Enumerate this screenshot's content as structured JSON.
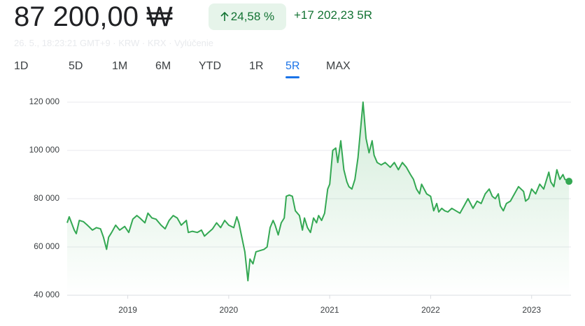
{
  "header": {
    "price": "87 200,00 ₩",
    "change_percent": "24,58 %",
    "change_abs": "+17 202,23",
    "period": "5R",
    "meta": "26. 5., 18:23:21 GMT+9 · KRW · KRX · Vylúčenie"
  },
  "tabs": [
    {
      "label": "1D"
    },
    {
      "label": "5D"
    },
    {
      "label": "1M"
    },
    {
      "label": "6M"
    },
    {
      "label": "YTD"
    },
    {
      "label": "1R"
    },
    {
      "label": "5R",
      "selected": true
    },
    {
      "label": "MAX"
    }
  ],
  "chart_data": {
    "type": "line",
    "color": "#34a853",
    "grid": true,
    "xlim": [
      2018.4,
      2023.39
    ],
    "xticks": [
      2019,
      2020,
      2021,
      2022,
      2023
    ],
    "ylim": [
      40000,
      120000
    ],
    "yticks": [
      {
        "value": 40000,
        "label": "40 000"
      },
      {
        "value": 60000,
        "label": "60 000"
      },
      {
        "value": 80000,
        "label": "80 000"
      },
      {
        "value": 100000,
        "label": "100 000"
      },
      {
        "value": 120000,
        "label": "120 000"
      }
    ],
    "x": [
      2018.4,
      2018.42,
      2018.47,
      2018.49,
      2018.52,
      2018.56,
      2018.6,
      2018.65,
      2018.69,
      2018.73,
      2018.76,
      2018.79,
      2018.81,
      2018.84,
      2018.88,
      2018.92,
      2018.97,
      2019.01,
      2019.05,
      2019.09,
      2019.12,
      2019.17,
      2019.2,
      2019.24,
      2019.28,
      2019.33,
      2019.37,
      2019.41,
      2019.45,
      2019.49,
      2019.53,
      2019.58,
      2019.6,
      2019.64,
      2019.69,
      2019.73,
      2019.76,
      2019.8,
      2019.84,
      2019.88,
      2019.92,
      2019.96,
      2020.0,
      2020.05,
      2020.08,
      2020.1,
      2020.13,
      2020.16,
      2020.19,
      2020.21,
      2020.24,
      2020.27,
      2020.31,
      2020.35,
      2020.38,
      2020.41,
      2020.44,
      2020.46,
      2020.49,
      2020.52,
      2020.55,
      2020.57,
      2020.6,
      2020.63,
      2020.66,
      2020.7,
      2020.73,
      2020.75,
      2020.78,
      2020.81,
      2020.84,
      2020.87,
      2020.89,
      2020.92,
      2020.95,
      2020.98,
      2021.0,
      2021.03,
      2021.06,
      2021.08,
      2021.11,
      2021.14,
      2021.17,
      2021.19,
      2021.22,
      2021.25,
      2021.28,
      2021.3,
      2021.33,
      2021.36,
      2021.39,
      2021.42,
      2021.44,
      2021.47,
      2021.51,
      2021.55,
      2021.6,
      2021.64,
      2021.68,
      2021.72,
      2021.76,
      2021.8,
      2021.83,
      2021.86,
      2021.89,
      2021.91,
      2021.96,
      2022.0,
      2022.03,
      2022.06,
      2022.08,
      2022.11,
      2022.14,
      2022.17,
      2022.21,
      2022.25,
      2022.29,
      2022.33,
      2022.37,
      2022.42,
      2022.46,
      2022.5,
      2022.54,
      2022.58,
      2022.61,
      2022.64,
      2022.67,
      2022.69,
      2022.72,
      2022.75,
      2022.79,
      2022.83,
      2022.87,
      2022.92,
      2022.94,
      2022.97,
      2023.0,
      2023.04,
      2023.08,
      2023.12,
      2023.17,
      2023.19,
      2023.22,
      2023.25,
      2023.28,
      2023.31,
      2023.33,
      2023.36,
      2023.37
    ],
    "values": [
      70000,
      72500,
      67000,
      65500,
      71000,
      70500,
      69000,
      67000,
      68000,
      67500,
      64000,
      59000,
      64000,
      66000,
      69000,
      67000,
      68500,
      66000,
      71500,
      73000,
      72000,
      70000,
      74000,
      72000,
      71500,
      69000,
      67500,
      71000,
      73000,
      72000,
      69000,
      71000,
      66000,
      66500,
      66000,
      67000,
      64500,
      66000,
      67500,
      70000,
      68000,
      71000,
      69000,
      68000,
      72500,
      70000,
      64000,
      58000,
      46000,
      55000,
      53000,
      58000,
      58500,
      59000,
      60000,
      68000,
      71000,
      69000,
      65000,
      70000,
      72000,
      81000,
      81500,
      81000,
      75000,
      73000,
      67000,
      72000,
      68000,
      66000,
      72000,
      70000,
      73000,
      71000,
      74000,
      84000,
      86000,
      100000,
      101000,
      95000,
      104000,
      92000,
      87000,
      85000,
      84000,
      88000,
      97000,
      106000,
      120000,
      105000,
      99000,
      104000,
      98000,
      95000,
      94000,
      95000,
      93000,
      95000,
      92000,
      95000,
      93000,
      90000,
      88000,
      84000,
      82000,
      86000,
      82000,
      81000,
      75000,
      78000,
      74500,
      76000,
      75000,
      74500,
      76000,
      75000,
      74000,
      77000,
      80000,
      76000,
      79000,
      78000,
      82000,
      84000,
      81000,
      80000,
      82000,
      77000,
      75000,
      78000,
      79000,
      82000,
      85000,
      83000,
      79000,
      80000,
      84000,
      82000,
      86000,
      84000,
      91000,
      87000,
      85000,
      92000,
      88000,
      90000,
      88000,
      87500,
      87200
    ]
  }
}
